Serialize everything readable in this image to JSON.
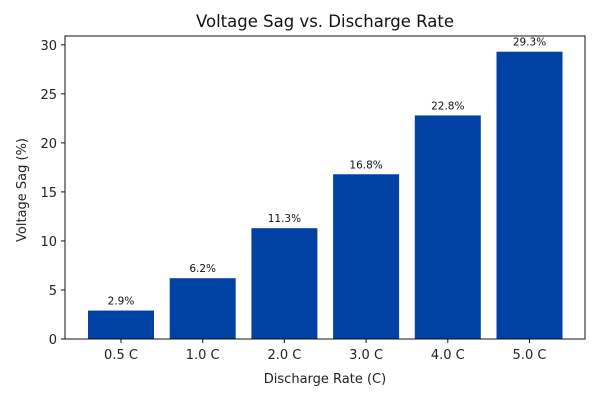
{
  "chart_data": {
    "type": "bar",
    "title": "Voltage Sag vs. Discharge Rate",
    "xlabel": "Discharge Rate (C)",
    "ylabel": "Voltage Sag (%)",
    "categories": [
      "0.5 C",
      "1.0 C",
      "2.0 C",
      "3.0 C",
      "4.0 C",
      "5.0 C"
    ],
    "values": [
      2.9,
      6.2,
      11.3,
      16.8,
      22.8,
      29.3
    ],
    "data_labels": [
      "2.9%",
      "6.2%",
      "11.3%",
      "16.8%",
      "22.8%",
      "29.3%"
    ],
    "yticks": [
      0,
      5,
      10,
      15,
      20,
      25,
      30
    ],
    "ylim": [
      0,
      30.9
    ],
    "grid": false,
    "bar_color": "#0041a3"
  }
}
